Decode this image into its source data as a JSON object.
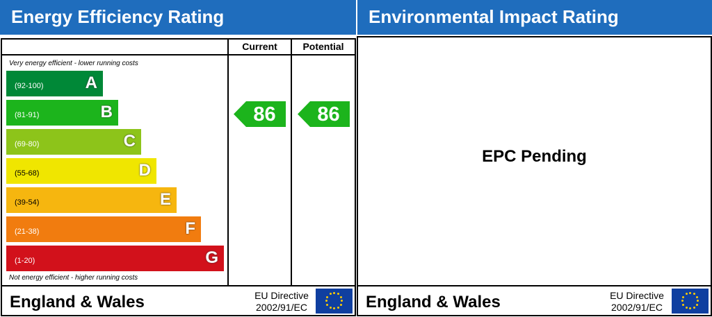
{
  "left": {
    "title": "Energy Efficiency Rating",
    "col_current": "Current",
    "col_potential": "Potential",
    "top_note": "Very energy efficient - lower running costs",
    "bottom_note": "Not energy efficient - higher running costs",
    "current": "86",
    "potential": "86",
    "region": "England & Wales",
    "directive_line1": "EU Directive",
    "directive_line2": "2002/91/EC"
  },
  "right": {
    "title": "Environmental Impact Rating",
    "pending": "EPC Pending",
    "region": "England & Wales",
    "directive_line1": "EU Directive",
    "directive_line2": "2002/91/EC"
  },
  "chart_data": {
    "type": "bar",
    "title": "Energy Efficiency Rating",
    "bands": [
      {
        "letter": "A",
        "range": "(92-100)",
        "color": "#008837"
      },
      {
        "letter": "B",
        "range": "(81-91)",
        "color": "#1cb41c"
      },
      {
        "letter": "C",
        "range": "(69-80)",
        "color": "#8dc41a"
      },
      {
        "letter": "D",
        "range": "(55-68)",
        "color": "#f0e600"
      },
      {
        "letter": "E",
        "range": "(39-54)",
        "color": "#f6b60f"
      },
      {
        "letter": "F",
        "range": "(21-38)",
        "color": "#f17c0f"
      },
      {
        "letter": "G",
        "range": "(1-20)",
        "color": "#d2111b"
      }
    ],
    "current": 86,
    "potential": 86,
    "rating_color": "#1cb41c"
  }
}
